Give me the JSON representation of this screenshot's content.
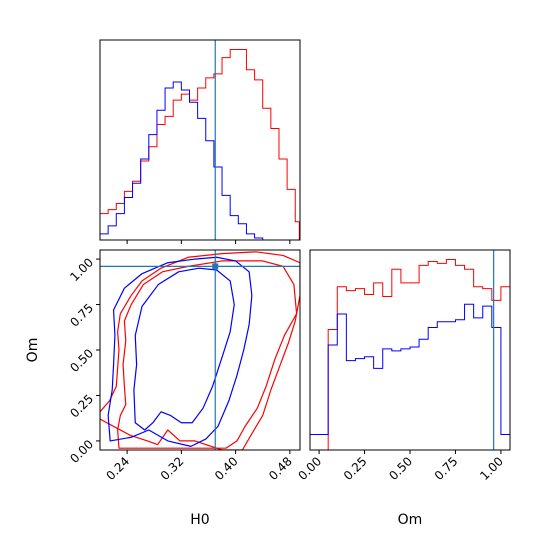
{
  "chart_data": {
    "type": "corner",
    "params": [
      "H0",
      "Om"
    ],
    "truths": {
      "H0": 0.37,
      "Om": 0.96
    },
    "truth_color": "#1f77b4",
    "series_colors": {
      "red": "#ff0000",
      "blue": "#0000ff"
    },
    "panels": {
      "h0_hist": {
        "type": "step-histogram",
        "x_range": [
          0.2,
          0.495
        ],
        "bin_edges": [
          0.2,
          0.206,
          0.212,
          0.218,
          0.224,
          0.23,
          0.236,
          0.242,
          0.248,
          0.254,
          0.26,
          0.266,
          0.272,
          0.278,
          0.284,
          0.29,
          0.296,
          0.302,
          0.308,
          0.314,
          0.32,
          0.326,
          0.332,
          0.338,
          0.344,
          0.35,
          0.356,
          0.362,
          0.368,
          0.374,
          0.38,
          0.386,
          0.392,
          0.398,
          0.404,
          0.41,
          0.416,
          0.422,
          0.428,
          0.434,
          0.44,
          0.446,
          0.452,
          0.458,
          0.464,
          0.47,
          0.476,
          0.482,
          0.488,
          0.494
        ],
        "series": [
          {
            "color": "red",
            "values": [
              13,
              13,
              15,
              15,
              18,
              18,
              24,
              24,
              29,
              29,
              39,
              39,
              46,
              46,
              57,
              57,
              61,
              61,
              69,
              69,
              72,
              72,
              69,
              69,
              75,
              75,
              80,
              80,
              82,
              82,
              90,
              90,
              94,
              94,
              94,
              94,
              84,
              84,
              79,
              79,
              65,
              65,
              55,
              55,
              40,
              40,
              25,
              25,
              9
            ]
          },
          {
            "color": "blue",
            "values": [
              3,
              3,
              7,
              7,
              13,
              13,
              21,
              21,
              28,
              28,
              40,
              40,
              52,
              52,
              64,
              64,
              75,
              75,
              78,
              78,
              74,
              74,
              68,
              68,
              60,
              60,
              49,
              49,
              36,
              36,
              22,
              22,
              12,
              12,
              8,
              8,
              3,
              3,
              1,
              1,
              0,
              0,
              0,
              0,
              0,
              0,
              0,
              0,
              0
            ]
          }
        ]
      },
      "om_hist": {
        "type": "step-histogram",
        "x_range": [
          -0.05,
          1.05
        ],
        "bin_edges": [
          -0.05,
          0.0,
          0.05,
          0.1,
          0.15,
          0.2,
          0.25,
          0.3,
          0.35,
          0.4,
          0.45,
          0.5,
          0.55,
          0.6,
          0.65,
          0.7,
          0.75,
          0.8,
          0.85,
          0.9,
          0.95,
          1.0,
          1.05
        ],
        "series": [
          {
            "color": "red",
            "values": [
              0,
              0,
              0.62,
              0.84,
              0.82,
              0.83,
              0.8,
              0.86,
              0.79,
              0.93,
              0.86,
              0.86,
              0.95,
              0.97,
              0.96,
              0.98,
              0.95,
              0.93,
              0.84,
              0.83,
              0.77,
              0.84,
              0
            ]
          },
          {
            "color": "blue",
            "values": [
              0.08,
              0.08,
              0.54,
              0.7,
              0.46,
              0.47,
              0.48,
              0.42,
              0.52,
              0.51,
              0.52,
              0.53,
              0.57,
              0.63,
              0.66,
              0.66,
              0.67,
              0.75,
              0.68,
              0.74,
              0.63,
              0.08,
              0
            ]
          }
        ]
      },
      "joint": {
        "type": "contour",
        "xlabel": "H0",
        "ylabel": "Om",
        "xlim": [
          0.2,
          0.495
        ],
        "ylim": [
          -0.05,
          1.05
        ],
        "xticks": [
          "0.24",
          "0.32",
          "0.40",
          "0.48"
        ],
        "xtick_values": [
          0.24,
          0.32,
          0.4,
          0.48
        ],
        "yticks": [
          "0.00",
          "0.25",
          "0.50",
          "0.75",
          "1.00"
        ],
        "ytick_values": [
          0.0,
          0.25,
          0.5,
          0.75,
          1.0
        ],
        "series": [
          {
            "color": "red",
            "contours": [
              [
                [
                  0.228,
                  -0.04
                ],
                [
                  0.226,
                  0.06
                ],
                [
                  0.23,
                  0.14
                ],
                [
                  0.238,
                  0.2
                ],
                [
                  0.236,
                  0.3
                ],
                [
                  0.234,
                  0.42
                ],
                [
                  0.238,
                  0.55
                ],
                [
                  0.236,
                  0.66
                ],
                [
                  0.246,
                  0.75
                ],
                [
                  0.264,
                  0.86
                ],
                [
                  0.292,
                  0.93
                ],
                [
                  0.33,
                  0.96
                ],
                [
                  0.38,
                  0.99
                ],
                [
                  0.44,
                  0.99
                ],
                [
                  0.47,
                  0.96
                ],
                [
                  0.486,
                  0.86
                ],
                [
                  0.49,
                  0.7
                ],
                [
                  0.472,
                  0.58
                ],
                [
                  0.458,
                  0.45
                ],
                [
                  0.445,
                  0.3
                ],
                [
                  0.432,
                  0.18
                ],
                [
                  0.414,
                  0.08
                ],
                [
                  0.402,
                  0.0
                ],
                [
                  0.386,
                  -0.04
                ]
              ],
              [
                [
                  0.2,
                  0.16
                ],
                [
                  0.214,
                  0.22
                ],
                [
                  0.224,
                  0.3
                ],
                [
                  0.226,
                  0.4
                ],
                [
                  0.228,
                  0.5
                ],
                [
                  0.226,
                  0.6
                ],
                [
                  0.23,
                  0.7
                ],
                [
                  0.246,
                  0.8
                ],
                [
                  0.262,
                  0.88
                ],
                [
                  0.29,
                  0.95
                ],
                [
                  0.33,
                  1.01
                ],
                [
                  0.38,
                  1.03
                ],
                [
                  0.43,
                  1.04
                ],
                [
                  0.47,
                  1.02
                ],
                [
                  0.495,
                  0.98
                ],
                [
                  0.495,
                  0.8
                ],
                [
                  0.488,
                  0.66
                ],
                [
                  0.478,
                  0.54
                ],
                [
                  0.466,
                  0.42
                ],
                [
                  0.452,
                  0.28
                ],
                [
                  0.44,
                  0.14
                ],
                [
                  0.424,
                  0.04
                ],
                [
                  0.41,
                  -0.05
                ],
                [
                  0.38,
                  -0.05
                ],
                [
                  0.34,
                  0.0
                ],
                [
                  0.318,
                  0.0
                ],
                [
                  0.3,
                  0.06
                ],
                [
                  0.285,
                  -0.02
                ],
                [
                  0.27,
                  0.0
                ],
                [
                  0.245,
                  0.03
                ],
                [
                  0.225,
                  0.07
                ],
                [
                  0.21,
                  0.1
                ],
                [
                  0.2,
                  0.12
                ]
              ]
            ]
          },
          {
            "color": "blue",
            "contours": [
              [
                [
                  0.215,
                  0.0
                ],
                [
                  0.212,
                  0.14
                ],
                [
                  0.218,
                  0.28
                ],
                [
                  0.22,
                  0.42
                ],
                [
                  0.222,
                  0.58
                ],
                [
                  0.22,
                  0.72
                ],
                [
                  0.236,
                  0.84
                ],
                [
                  0.262,
                  0.92
                ],
                [
                  0.3,
                  0.98
                ],
                [
                  0.34,
                  1.0
                ],
                [
                  0.372,
                  1.01
                ],
                [
                  0.4,
                  0.99
                ],
                [
                  0.42,
                  0.93
                ],
                [
                  0.424,
                  0.8
                ],
                [
                  0.42,
                  0.64
                ],
                [
                  0.412,
                  0.5
                ],
                [
                  0.402,
                  0.36
                ],
                [
                  0.39,
                  0.22
                ],
                [
                  0.374,
                  0.08
                ],
                [
                  0.356,
                  0.01
                ],
                [
                  0.334,
                  -0.03
                ],
                [
                  0.3,
                  0.0
                ],
                [
                  0.272,
                  0.06
                ],
                [
                  0.246,
                  0.02
                ]
              ],
              [
                [
                  0.252,
                  0.1
                ],
                [
                  0.25,
                  0.28
                ],
                [
                  0.254,
                  0.42
                ],
                [
                  0.252,
                  0.58
                ],
                [
                  0.262,
                  0.74
                ],
                [
                  0.286,
                  0.86
                ],
                [
                  0.316,
                  0.93
                ],
                [
                  0.346,
                  0.95
                ],
                [
                  0.372,
                  0.94
                ],
                [
                  0.392,
                  0.88
                ],
                [
                  0.398,
                  0.75
                ],
                [
                  0.392,
                  0.6
                ],
                [
                  0.38,
                  0.46
                ],
                [
                  0.366,
                  0.3
                ],
                [
                  0.352,
                  0.18
                ],
                [
                  0.336,
                  0.1
                ],
                [
                  0.32,
                  0.1
                ],
                [
                  0.304,
                  0.14
                ],
                [
                  0.29,
                  0.16
                ],
                [
                  0.278,
                  0.1
                ],
                [
                  0.266,
                  0.06
                ]
              ]
            ]
          }
        ]
      }
    }
  }
}
